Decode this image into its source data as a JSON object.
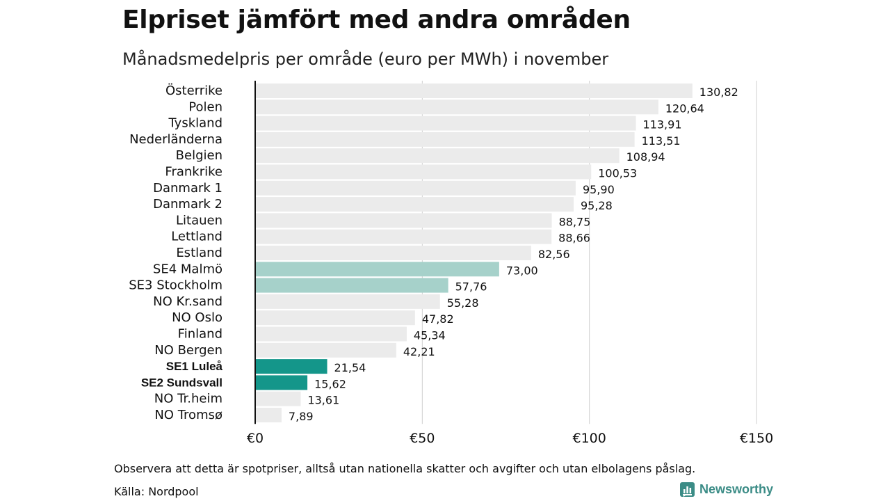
{
  "title": "Elpriset jämfört med andra områden",
  "subtitle": "Månadsmedelpris per område (euro per MWh) i november",
  "note": "Observera att detta är spotpriser, alltså utan nationella skatter och avgifter och utan elbolagens påslag.",
  "source": "Källa: Nordpool",
  "brand": {
    "name": "Newsworthy",
    "icon": "newsworthy-logo-icon",
    "color": "#3b8c86"
  },
  "colors": {
    "default_bar": "#ebebeb",
    "highlight_light": "#a6d1ca",
    "highlight_dark": "#14968a",
    "grid": "#cfcfcf",
    "axis": "#111111"
  },
  "chart_data": {
    "type": "bar",
    "orientation": "horizontal",
    "categories": [
      "Österrike",
      "Polen",
      "Tyskland",
      "Nederländerna",
      "Belgien",
      "Frankrike",
      "Danmark  1",
      "Danmark  2",
      "Litauen",
      "Lettland",
      "Estland",
      "SE4  Malmö",
      "SE3  Stockholm",
      "NO Kr.sand",
      "NO Oslo",
      "Finland",
      "NO Bergen",
      "SE1 Luleå",
      "SE2 Sundsvall",
      "NO Tr.heim",
      "NO Tromsø"
    ],
    "values": [
      130.82,
      120.64,
      113.91,
      113.51,
      108.94,
      100.53,
      95.9,
      95.28,
      88.75,
      88.66,
      82.56,
      73.0,
      57.76,
      55.28,
      47.82,
      45.34,
      42.21,
      21.54,
      15.62,
      13.61,
      7.89
    ],
    "value_labels": [
      "130,82",
      "120,64",
      "113,91",
      "113,51",
      "108,94",
      "100,53",
      "95,90",
      "95,28",
      "88,75",
      "88,66",
      "82,56",
      "73,00",
      "57,76",
      "55,28",
      "47,82",
      "45,34",
      "42,21",
      "21,54",
      "15,62",
      "13,61",
      "7,89"
    ],
    "highlight": [
      "none",
      "none",
      "none",
      "none",
      "none",
      "none",
      "none",
      "none",
      "none",
      "none",
      "none",
      "light",
      "light",
      "none",
      "none",
      "none",
      "none",
      "dark",
      "dark",
      "none",
      "none"
    ],
    "bold_labels": [
      "SE1 Luleå",
      "SE2 Sundsvall"
    ],
    "xlim": [
      0,
      150
    ],
    "xticks": [
      0,
      50,
      100,
      150
    ],
    "xtick_labels": [
      "€0",
      "€50",
      "€100",
      "€150"
    ],
    "grid": true,
    "legend": "none"
  }
}
